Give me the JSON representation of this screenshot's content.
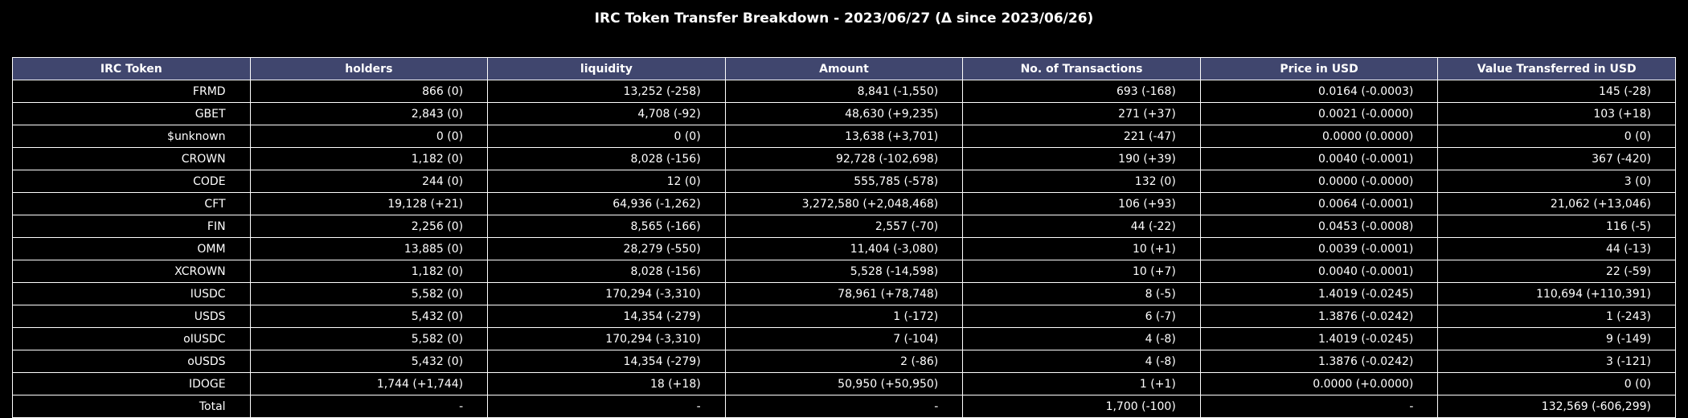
{
  "chart_data": {
    "type": "table",
    "title": "IRC Token Transfer Breakdown - 2023/06/27 (Δ since 2023/06/26)",
    "colors": {
      "header_bg": "#40466e",
      "cell_bg": "#000000",
      "border": "#ffffff",
      "text": "#ffffff"
    },
    "columns": [
      "IRC Token",
      "holders",
      "liquidity",
      "Amount",
      "No. of Transactions",
      "Price in USD",
      "Value Transferred in USD"
    ],
    "rows": [
      [
        "FRMD",
        "866 (0)",
        "13,252 (-258)",
        "8,841 (-1,550)",
        "693 (-168)",
        "0.0164 (-0.0003)",
        "145 (-28)"
      ],
      [
        "GBET",
        "2,843 (0)",
        "4,708 (-92)",
        "48,630 (+9,235)",
        "271 (+37)",
        "0.0021 (-0.0000)",
        "103 (+18)"
      ],
      [
        "$unknown",
        "0 (0)",
        "0 (0)",
        "13,638 (+3,701)",
        "221 (-47)",
        "0.0000 (0.0000)",
        "0 (0)"
      ],
      [
        "CROWN",
        "1,182 (0)",
        "8,028 (-156)",
        "92,728 (-102,698)",
        "190 (+39)",
        "0.0040 (-0.0001)",
        "367 (-420)"
      ],
      [
        "CODE",
        "244 (0)",
        "12 (0)",
        "555,785 (-578)",
        "132 (0)",
        "0.0000 (-0.0000)",
        "3 (0)"
      ],
      [
        "CFT",
        "19,128 (+21)",
        "64,936 (-1,262)",
        "3,272,580 (+2,048,468)",
        "106 (+93)",
        "0.0064 (-0.0001)",
        "21,062 (+13,046)"
      ],
      [
        "FIN",
        "2,256 (0)",
        "8,565 (-166)",
        "2,557 (-70)",
        "44 (-22)",
        "0.0453 (-0.0008)",
        "116 (-5)"
      ],
      [
        "OMM",
        "13,885 (0)",
        "28,279 (-550)",
        "11,404 (-3,080)",
        "10 (+1)",
        "0.0039 (-0.0001)",
        "44 (-13)"
      ],
      [
        "XCROWN",
        "1,182 (0)",
        "8,028 (-156)",
        "5,528 (-14,598)",
        "10 (+7)",
        "0.0040 (-0.0001)",
        "22 (-59)"
      ],
      [
        "IUSDC",
        "5,582 (0)",
        "170,294 (-3,310)",
        "78,961 (+78,748)",
        "8 (-5)",
        "1.4019 (-0.0245)",
        "110,694 (+110,391)"
      ],
      [
        "USDS",
        "5,432 (0)",
        "14,354 (-279)",
        "1 (-172)",
        "6 (-7)",
        "1.3876 (-0.0242)",
        "1 (-243)"
      ],
      [
        "oIUSDC",
        "5,582 (0)",
        "170,294 (-3,310)",
        "7 (-104)",
        "4 (-8)",
        "1.4019 (-0.0245)",
        "9 (-149)"
      ],
      [
        "oUSDS",
        "5,432 (0)",
        "14,354 (-279)",
        "2 (-86)",
        "4 (-8)",
        "1.3876 (-0.0242)",
        "3 (-121)"
      ],
      [
        "IDOGE",
        "1,744 (+1,744)",
        "18 (+18)",
        "50,950 (+50,950)",
        "1 (+1)",
        "0.0000 (+0.0000)",
        "0 (0)"
      ],
      [
        "Total",
        "-",
        "-",
        "-",
        "1,700 (-100)",
        "-",
        "132,569 (-606,299)"
      ]
    ]
  }
}
